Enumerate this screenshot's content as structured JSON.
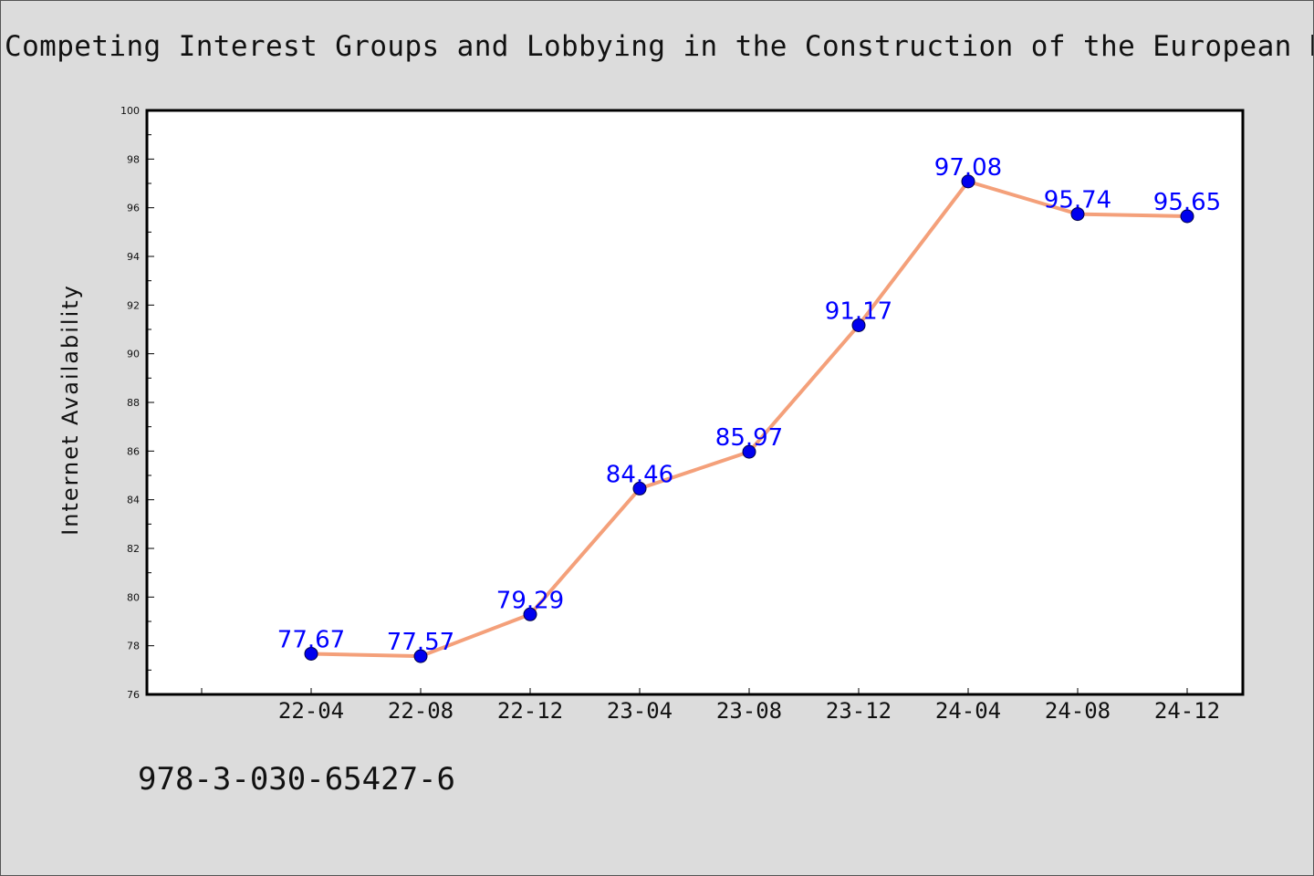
{
  "chart_data": {
    "type": "line",
    "title": "Competing Interest Groups and Lobbying in the Construction of the European Banki",
    "xlabel": "",
    "ylabel": "Internet Availability",
    "categories": [
      "22-04",
      "22-08",
      "22-12",
      "23-04",
      "23-08",
      "23-12",
      "24-04",
      "24-08",
      "24-12"
    ],
    "series": [
      {
        "values": [
          77.67,
          77.57,
          79.29,
          84.46,
          85.97,
          91.17,
          97.08,
          95.74,
          95.65
        ]
      }
    ],
    "ylim": [
      76,
      100
    ],
    "yticks": [
      "76",
      "78",
      "80",
      "82",
      "84",
      "86",
      "88",
      "90",
      "92",
      "94",
      "96",
      "98",
      "100"
    ],
    "data_labels": [
      "77.67",
      "77.57",
      "79.29",
      "84.46",
      "85.97",
      "91.17",
      "97.08",
      "95.74",
      "95.65"
    ],
    "grid": false,
    "legend": "none",
    "colors": {
      "line": "#f4a07a",
      "marker": "#0000ee",
      "label": "#0000ff"
    }
  },
  "footer": {
    "isbn": "978-3-030-65427-6"
  }
}
